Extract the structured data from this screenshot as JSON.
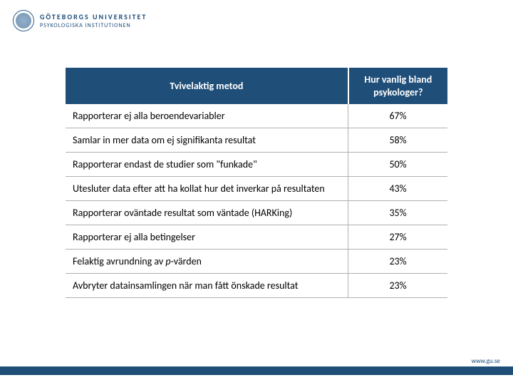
{
  "logo": {
    "university": "GÖTEBORGS UNIVERSITET",
    "department": "PSYKOLOGISKA INSTITUTIONEN"
  },
  "table": {
    "header": {
      "method": "Tvivelaktig metod",
      "frequency": "Hur vanlig bland psykologer?"
    },
    "rows": [
      {
        "method": "Rapporterar ej alla beroendevariabler",
        "value": "67%"
      },
      {
        "method": "Samlar in mer data om ej signifikanta resultat",
        "value": "58%"
      },
      {
        "method": "Rapporterar endast de studier som \"funkade\"",
        "value": "50%"
      },
      {
        "method": "Utesluter data efter att ha kollat hur det inverkar på resultaten",
        "value": "43%"
      },
      {
        "method": "Rapporterar oväntade resultat som väntade (HARKing)",
        "value": "35%"
      },
      {
        "method": "Rapporterar ej alla betingelser",
        "value": "27%"
      },
      {
        "method_html": "Felaktig avrundning av <span class=\"italic\">p</span>-värden",
        "value": "23%"
      },
      {
        "method": "Avbryter datainsamlingen när man fått önskade resultat",
        "value": "23%"
      }
    ]
  },
  "footer": {
    "url": "www.gu.se"
  },
  "colors": {
    "header_bg": "#1f4e78",
    "border": "#b0b0b0",
    "logo": "#1a4a78"
  }
}
